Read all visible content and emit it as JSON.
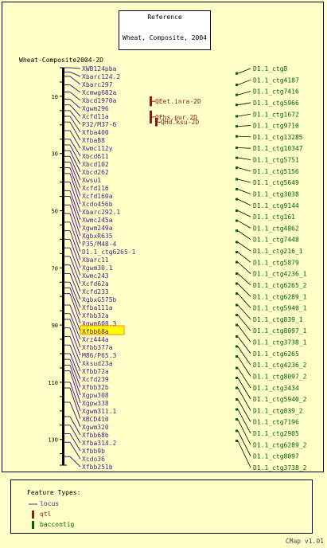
{
  "reference": {
    "title": "Reference",
    "subtitle": "Wheat, Composite, 2004"
  },
  "map_title": "Wheat-Composite2004-2D",
  "colors": {
    "background": "#ffffc8",
    "locus": "#551a8b",
    "qtl": "#8b1a1a",
    "contig": "#006400"
  },
  "axis": {
    "min": 0,
    "max": 139,
    "ticks": [
      10,
      30,
      50,
      70,
      90,
      110,
      130
    ]
  },
  "loci": [
    {
      "name": "XWB124pba",
      "pos": 0.0
    },
    {
      "name": "Xbarc124.2",
      "pos": 1.5
    },
    {
      "name": "Xbarc297",
      "pos": 3.0
    },
    {
      "name": "Xcmwg682a",
      "pos": 6.0
    },
    {
      "name": "Xbcd1970a",
      "pos": 8.5
    },
    {
      "name": "Xgwm296",
      "pos": 11.0
    },
    {
      "name": "Xcfd11a",
      "pos": 13.0
    },
    {
      "name": "P32/M37-6",
      "pos": 15.0
    },
    {
      "name": "Xfba400",
      "pos": 17.0
    },
    {
      "name": "Xfba88",
      "pos": 19.0
    },
    {
      "name": "Xwmc112y",
      "pos": 22.0
    },
    {
      "name": "Xbcd611",
      "pos": 25.0
    },
    {
      "name": "Xbcd102",
      "pos": 27.0
    },
    {
      "name": "Xbcd262",
      "pos": 29.0
    },
    {
      "name": "Xwsu1",
      "pos": 31.0
    },
    {
      "name": "Xcfd116",
      "pos": 33.0
    },
    {
      "name": "Xcfd160a",
      "pos": 35.0
    },
    {
      "name": "Xcdo456b",
      "pos": 37.0
    },
    {
      "name": "Xbarc292.1",
      "pos": 40.0
    },
    {
      "name": "Xwmc245a",
      "pos": 43.0
    },
    {
      "name": "Xgwm249a",
      "pos": 45.0
    },
    {
      "name": "XgbxR635",
      "pos": 48.0
    },
    {
      "name": "P35/M48-4",
      "pos": 51.0
    },
    {
      "name": "D1.1_ctg6265-1",
      "pos": 54.0
    },
    {
      "name": "Xbarc11",
      "pos": 57.0
    },
    {
      "name": "Xgwm30.1",
      "pos": 60.0
    },
    {
      "name": "Xwmc243",
      "pos": 63.0
    },
    {
      "name": "Xcfd62a",
      "pos": 66.0
    },
    {
      "name": "Xcfd233",
      "pos": 69.0
    },
    {
      "name": "XgbxG575b",
      "pos": 72.0
    },
    {
      "name": "Xfba111a",
      "pos": 75.0
    },
    {
      "name": "Xfbb32a",
      "pos": 77.0
    },
    {
      "name": "Xgwm608.3",
      "pos": 79.0
    },
    {
      "name": "Xfbb68a",
      "pos": 83.0,
      "highlight": true
    },
    {
      "name": "Xrz444a",
      "pos": 86.0
    },
    {
      "name": "Xfbb377a",
      "pos": 88.0
    },
    {
      "name": "M86/P65.3",
      "pos": 91.0
    },
    {
      "name": "Xksud23a",
      "pos": 94.0
    },
    {
      "name": "Xfbb72a",
      "pos": 97.0
    },
    {
      "name": "Xcfd239",
      "pos": 100.0
    },
    {
      "name": "Xfbb32b",
      "pos": 102.0
    },
    {
      "name": "Xgpw308",
      "pos": 104.0
    },
    {
      "name": "Xgpw338",
      "pos": 106.0
    },
    {
      "name": "Xgwm311.1",
      "pos": 110.0
    },
    {
      "name": "XBCD410",
      "pos": 112.0
    },
    {
      "name": "Xgwm320",
      "pos": 117.0
    },
    {
      "name": "Xfbb68b",
      "pos": 122.0
    },
    {
      "name": "Xfba314.2",
      "pos": 125.0
    },
    {
      "name": "Xfbb9b",
      "pos": 128.0
    },
    {
      "name": "Xcdo36",
      "pos": 131.0
    },
    {
      "name": "Xfbb251b",
      "pos": 136.0
    }
  ],
  "qtls": [
    {
      "name": "QEet.inra-2D",
      "start": 10.0,
      "end": 13.5
    },
    {
      "name": "QFhs.pur.2D",
      "start": 15.0,
      "end": 19.5
    },
    {
      "name": "QHd.ksu-2D",
      "start": 17.5,
      "end": 20.5
    }
  ],
  "contigs": [
    {
      "name": "D1.1_ctg8",
      "pos": 2.0
    },
    {
      "name": "D1.1_ctg4187",
      "pos": 6.0
    },
    {
      "name": "D1.1_ctg7416",
      "pos": 9.5
    },
    {
      "name": "D1.1_ctg5966",
      "pos": 13.0
    },
    {
      "name": "D1.1_ctg1672",
      "pos": 17.0
    },
    {
      "name": "D1.1_ctg9710",
      "pos": 20.5
    },
    {
      "name": "D1.1_ctg13285",
      "pos": 24.0
    },
    {
      "name": "D1.1_ctg10347",
      "pos": 28.0
    },
    {
      "name": "D1.1_ctg5751",
      "pos": 31.5
    },
    {
      "name": "D1.1_ctg5156",
      "pos": 35.0
    },
    {
      "name": "D1.1_ctg5649",
      "pos": 39.0
    },
    {
      "name": "D1.1_ctg3038",
      "pos": 42.5
    },
    {
      "name": "D1.1_ctg9144",
      "pos": 46.0
    },
    {
      "name": "D1.1_ctg161",
      "pos": 50.0
    },
    {
      "name": "D1.1_ctg4862",
      "pos": 53.5
    },
    {
      "name": "D1.1_ctg7448",
      "pos": 57.0
    },
    {
      "name": "D1.1_ctg216_1",
      "pos": 61.0
    },
    {
      "name": "D1.1_ctg5879",
      "pos": 64.5
    },
    {
      "name": "D1.1_ctg4236_1",
      "pos": 68.0
    },
    {
      "name": "D1.1_ctg6265_2",
      "pos": 72.0
    },
    {
      "name": "D1.1_ctg6289_1",
      "pos": 75.5
    },
    {
      "name": "D1.1_ctg5940_1",
      "pos": 79.0
    },
    {
      "name": "D1.1_ctg839_1",
      "pos": 83.0
    },
    {
      "name": "D1.1_ctg8097_1",
      "pos": 86.5
    },
    {
      "name": "D1.1_ctg3738_1",
      "pos": 90.0
    },
    {
      "name": "D1.1_ctg6265",
      "pos": 94.0
    },
    {
      "name": "D1.1_ctg4236_2",
      "pos": 97.5
    },
    {
      "name": "D1.1_ctg8097_2",
      "pos": 101.0
    },
    {
      "name": "D1.1_ctg3434",
      "pos": 105.0
    },
    {
      "name": "D1.1_ctg5940_2",
      "pos": 108.5
    },
    {
      "name": "D1.1_ctg839_2",
      "pos": 112.0
    },
    {
      "name": "D1.1_ctg7196",
      "pos": 116.0
    },
    {
      "name": "D1.1_ctg2905",
      "pos": 119.5
    },
    {
      "name": "D1.1_ctg6289_2",
      "pos": 123.0
    },
    {
      "name": "D1.1_ctg8097",
      "pos": 127.0
    },
    {
      "name": "D1.1_ctg3738_2",
      "pos": 130.5
    }
  ],
  "legend": {
    "title": "Feature Types:",
    "items": [
      {
        "type": "locus",
        "label": "locus"
      },
      {
        "type": "qtl",
        "label": "qtl"
      },
      {
        "type": "contig",
        "label": "baccontig"
      }
    ]
  },
  "footer": "CMap v1.01"
}
